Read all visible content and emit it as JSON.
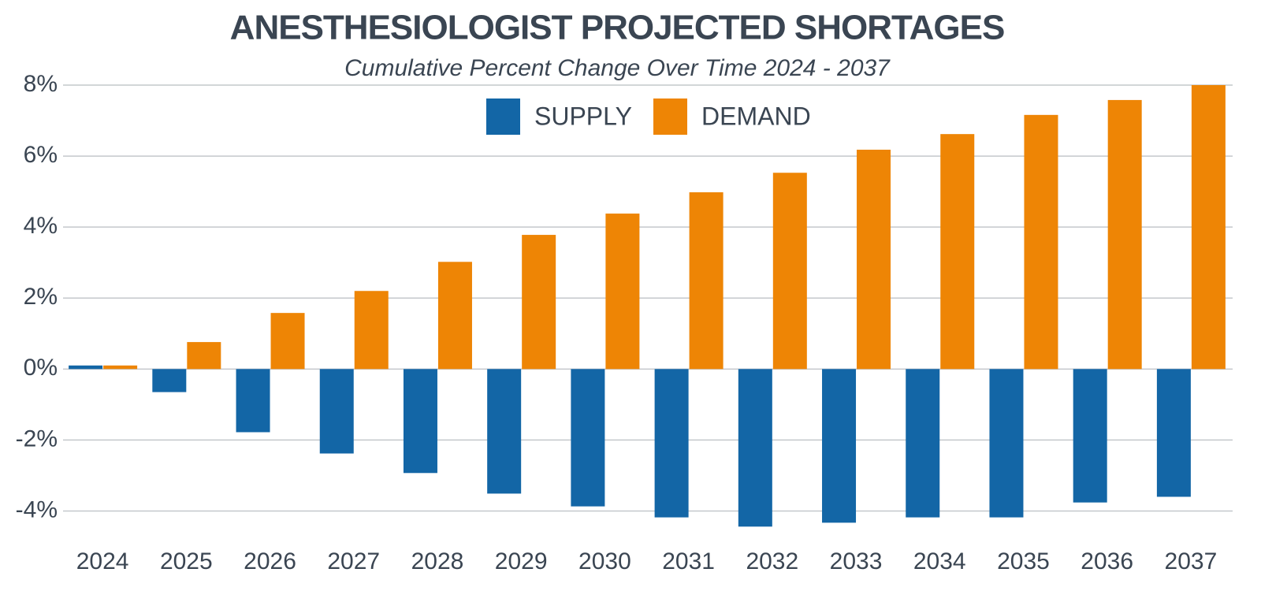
{
  "chart_data": {
    "type": "bar",
    "title": "ANESTHESIOLOGIST PROJECTED SHORTAGES",
    "subtitle": "Cumulative Percent Change Over Time 2024 - 2037",
    "categories": [
      "2024",
      "2025",
      "2026",
      "2027",
      "2028",
      "2029",
      "2030",
      "2031",
      "2032",
      "2033",
      "2034",
      "2035",
      "2036",
      "2037"
    ],
    "series": [
      {
        "name": "SUPPLY",
        "color": "#1366a6",
        "values": [
          0.1,
          -0.65,
          -1.78,
          -2.38,
          -2.93,
          -3.51,
          -3.87,
          -4.18,
          -4.44,
          -4.33,
          -4.18,
          -4.18,
          -3.76,
          -3.6
        ]
      },
      {
        "name": "DEMAND",
        "color": "#ee8505",
        "values": [
          0.1,
          0.76,
          1.58,
          2.2,
          3.02,
          3.78,
          4.38,
          4.98,
          5.53,
          6.18,
          6.62,
          7.16,
          7.58,
          8.0
        ]
      }
    ],
    "ylim": [
      -4.7,
      8
    ],
    "yticks": [
      {
        "value": -4,
        "label": "-4%"
      },
      {
        "value": -2,
        "label": "-2%"
      },
      {
        "value": 0,
        "label": "0%"
      },
      {
        "value": 2,
        "label": "2%"
      },
      {
        "value": 4,
        "label": "4%"
      },
      {
        "value": 6,
        "label": "6%"
      },
      {
        "value": 8,
        "label": "8%"
      }
    ],
    "grid": true,
    "legend": "top"
  }
}
